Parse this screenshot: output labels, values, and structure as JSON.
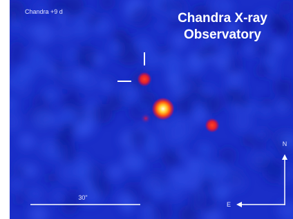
{
  "image": {
    "epoch_label": "Chandra +9 d",
    "title": [
      "Chandra X-ray",
      "Observatory"
    ],
    "scale_bar_label": "30\"",
    "compass": {
      "north": "N",
      "east": "E"
    }
  }
}
